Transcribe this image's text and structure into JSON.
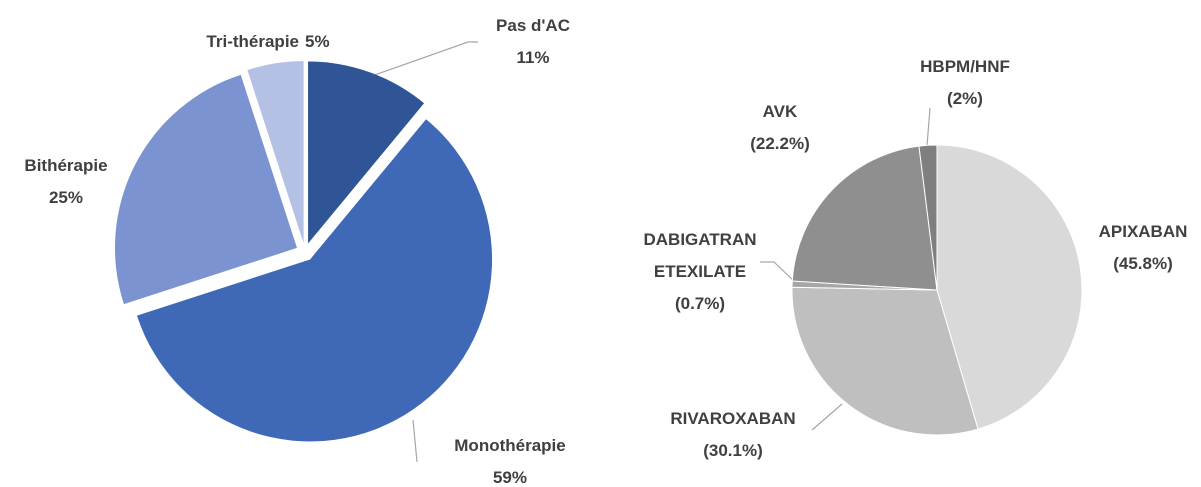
{
  "chart_data": [
    {
      "type": "pie",
      "categories": [
        "Pas d'AC",
        "Monothérapie",
        "Bithérapie",
        "Tri-thérapie"
      ],
      "values": [
        11,
        59,
        25,
        5
      ],
      "value_labels": [
        "11%",
        "59%",
        "25%",
        "5%"
      ],
      "colors": [
        "#2f5597",
        "#3f69b7",
        "#7b93d0",
        "#b4c0e4"
      ],
      "exploded": true
    },
    {
      "type": "pie",
      "categories": [
        "APIXABAN",
        "RIVAROXABAN",
        "DABIGATRAN ETEXILATE",
        "AVK",
        "HBPM/HNF"
      ],
      "values": [
        45.8,
        30.1,
        0.7,
        22.2,
        2
      ],
      "value_labels": [
        "(45.8%)",
        "(30.1%)",
        "(0.7%)",
        "(22.2%)",
        "(2%)"
      ],
      "colors": [
        "#d9d9d9",
        "#bfbfbf",
        "#a6a6a6",
        "#8f8f8f",
        "#7f7f7f"
      ],
      "exploded": false
    }
  ]
}
